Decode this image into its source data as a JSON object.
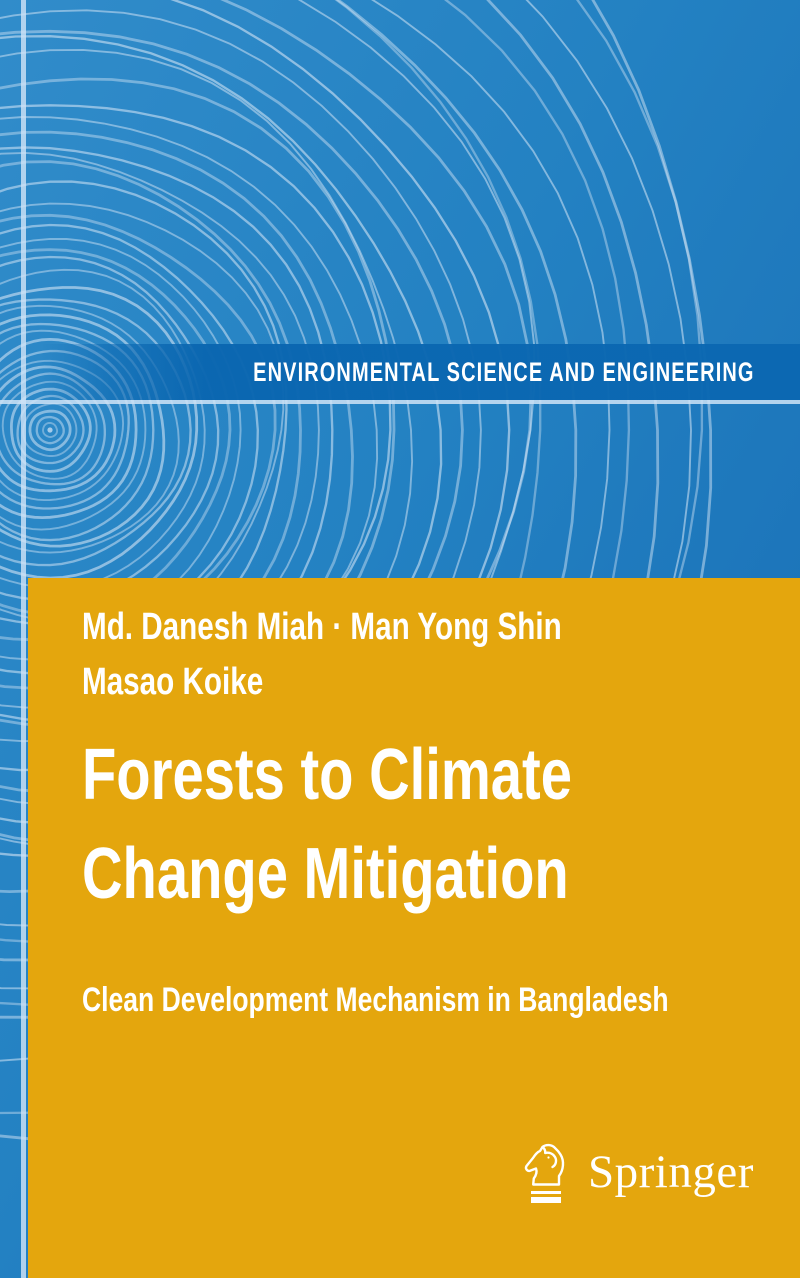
{
  "series": {
    "label": "ENVIRONMENTAL SCIENCE AND ENGINEERING"
  },
  "authors": {
    "line1": "Md. Danesh Miah · Man Yong Shin",
    "line2": "Masao Koike"
  },
  "title": {
    "line1": "Forests to Climate",
    "line2": "Change Mitigation"
  },
  "subtitle": {
    "text": "Clean Development Mechanism in Bangladesh"
  },
  "publisher": {
    "name": "Springer",
    "logo_icon": "springer-horse-icon"
  },
  "colors": {
    "background_blue": "#2381c2",
    "background_blue_light": "#318cca",
    "background_blue_dark": "#186db5",
    "series_band_blue": "#0b68b2",
    "ring_line": "#cfe2f4",
    "panel_yellow": "#e4a60d",
    "text": "#ffffff"
  }
}
